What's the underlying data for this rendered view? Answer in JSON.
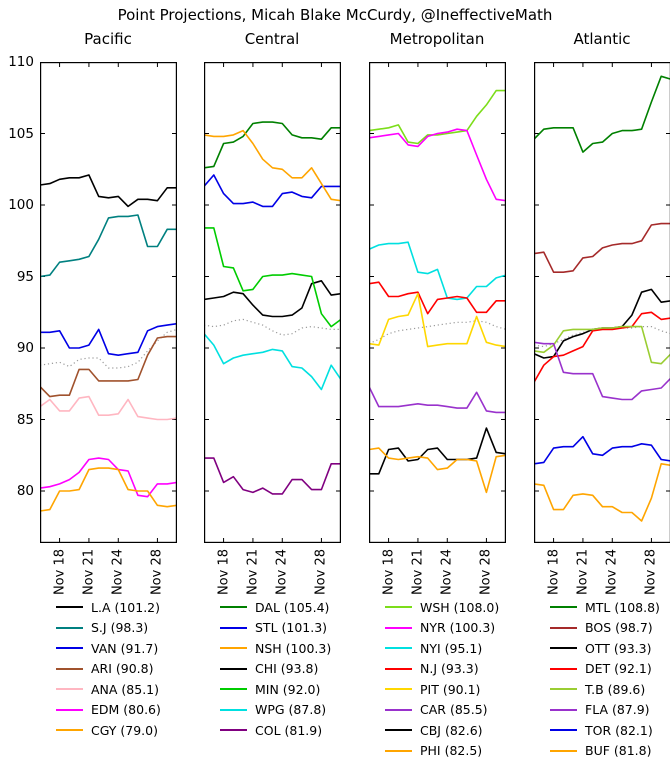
{
  "chart_data": {
    "type": "line",
    "title": "Point Projections, Micah Blake McCurdy, @IneffectiveMath",
    "x_axis": {
      "tick_labels": [
        "Nov 18",
        "Nov 21",
        "Nov 24",
        "Nov 28"
      ],
      "tick_positions_days": [
        2,
        5,
        8,
        12
      ],
      "domain_days": [
        0,
        14
      ]
    },
    "y_axis": {
      "ticks": [
        110,
        105,
        100,
        95,
        90,
        85,
        80
      ],
      "min": 76.4,
      "max": 110
    },
    "average_line_color": "#999999",
    "panels": [
      {
        "title": "Pacific",
        "average_points": [
          88.8,
          88.9,
          89.0,
          88.7,
          89.2,
          89.3,
          89.3,
          88.6,
          88.6,
          88.7,
          89.0,
          89.8,
          90.5,
          91.1,
          91.3
        ],
        "series": [
          {
            "team": "L.A",
            "final": 101.2,
            "label": "L.A (101.2)",
            "color": "#000000",
            "points": [
              101.4,
              101.5,
              101.8,
              101.9,
              101.9,
              102.1,
              100.6,
              100.5,
              100.6,
              99.9,
              100.4,
              100.4,
              100.3,
              101.2,
              101.2
            ]
          },
          {
            "team": "S.J",
            "final": 98.3,
            "label": "S.J (98.3)",
            "color": "#008080",
            "points": [
              95.0,
              95.1,
              96.0,
              96.1,
              96.2,
              96.4,
              97.6,
              99.1,
              99.2,
              99.2,
              99.3,
              97.1,
              97.1,
              98.3,
              98.3
            ]
          },
          {
            "team": "VAN",
            "final": 91.7,
            "label": "VAN (91.7)",
            "color": "#0000e6",
            "points": [
              91.1,
              91.1,
              91.2,
              90.0,
              90.0,
              90.2,
              91.3,
              89.6,
              89.5,
              89.6,
              89.7,
              91.2,
              91.5,
              91.6,
              91.7
            ]
          },
          {
            "team": "ARI",
            "final": 90.8,
            "label": "ARI (90.8)",
            "color": "#a0522d",
            "points": [
              87.3,
              86.6,
              86.7,
              86.7,
              88.5,
              88.5,
              87.7,
              87.7,
              87.7,
              87.7,
              87.8,
              89.5,
              90.7,
              90.8,
              90.8
            ]
          },
          {
            "team": "ANA",
            "final": 85.1,
            "label": "ANA (85.1)",
            "color": "#ffb6c1",
            "points": [
              85.9,
              86.4,
              85.6,
              85.6,
              86.5,
              86.6,
              85.3,
              85.3,
              85.4,
              86.4,
              85.2,
              85.1,
              85.0,
              85.0,
              85.1
            ]
          },
          {
            "team": "EDM",
            "final": 80.6,
            "label": "EDM (80.6)",
            "color": "#ff00ff",
            "points": [
              80.2,
              80.3,
              80.5,
              80.8,
              81.3,
              82.2,
              82.3,
              82.2,
              81.5,
              81.4,
              79.7,
              79.6,
              80.5,
              80.5,
              80.6
            ]
          },
          {
            "team": "CGY",
            "final": 79.0,
            "label": "CGY (79.0)",
            "color": "#ffa500",
            "points": [
              78.6,
              78.7,
              80.0,
              80.0,
              80.1,
              81.5,
              81.6,
              81.6,
              81.5,
              80.1,
              80.0,
              80.0,
              79.0,
              78.9,
              79.0
            ]
          }
        ]
      },
      {
        "title": "Central",
        "average_points": [
          91.6,
          91.5,
          91.6,
          91.9,
          92.0,
          91.8,
          91.6,
          91.2,
          90.9,
          91.0,
          91.4,
          91.5,
          91.4,
          91.3,
          91.3
        ],
        "series": [
          {
            "team": "DAL",
            "final": 105.4,
            "label": "DAL (105.4)",
            "color": "#008000",
            "points": [
              102.6,
              102.7,
              104.3,
              104.4,
              104.8,
              105.7,
              105.8,
              105.8,
              105.7,
              104.9,
              104.7,
              104.7,
              104.6,
              105.4,
              105.4
            ]
          },
          {
            "team": "STL",
            "final": 101.3,
            "label": "STL (101.3)",
            "color": "#0000e6",
            "points": [
              101.3,
              102.1,
              100.8,
              100.1,
              100.1,
              100.2,
              99.9,
              99.9,
              100.8,
              100.9,
              100.6,
              100.5,
              101.3,
              101.3,
              101.3
            ]
          },
          {
            "team": "NSH",
            "final": 100.3,
            "label": "NSH (100.3)",
            "color": "#ffa500",
            "points": [
              104.9,
              104.8,
              104.8,
              104.9,
              105.2,
              104.3,
              103.2,
              102.6,
              102.5,
              101.9,
              101.9,
              102.6,
              101.5,
              100.4,
              100.3
            ]
          },
          {
            "team": "CHI",
            "final": 93.8,
            "label": "CHI (93.8)",
            "color": "#000000",
            "points": [
              93.4,
              93.5,
              93.6,
              93.9,
              93.8,
              93.0,
              92.3,
              92.2,
              92.2,
              92.3,
              92.8,
              94.5,
              94.7,
              93.7,
              93.8
            ]
          },
          {
            "team": "MIN",
            "final": 92.0,
            "label": "MIN (92.0)",
            "color": "#00cc00",
            "points": [
              98.4,
              98.4,
              95.7,
              95.6,
              94.0,
              94.1,
              95.0,
              95.1,
              95.1,
              95.2,
              95.1,
              95.0,
              92.4,
              91.5,
              92.0
            ]
          },
          {
            "team": "WPG",
            "final": 87.8,
            "label": "WPG (87.8)",
            "color": "#00e0e0",
            "points": [
              91.0,
              90.2,
              88.9,
              89.3,
              89.5,
              89.6,
              89.7,
              89.9,
              89.8,
              88.7,
              88.6,
              88.0,
              87.1,
              88.8,
              87.8
            ]
          },
          {
            "team": "COL",
            "final": 81.9,
            "label": "COL (81.9)",
            "color": "#800080",
            "points": [
              82.3,
              82.3,
              80.6,
              81.0,
              80.1,
              79.9,
              80.2,
              79.8,
              79.8,
              80.8,
              80.8,
              80.1,
              80.1,
              81.9,
              81.9
            ]
          }
        ]
      },
      {
        "title": "Metropolitan",
        "average_points": [
          90.3,
          90.6,
          91.0,
          91.2,
          91.3,
          91.4,
          91.5,
          91.6,
          91.7,
          91.8,
          91.8,
          91.9,
          91.8,
          91.5,
          91.3
        ],
        "series": [
          {
            "team": "WSH",
            "final": 108.0,
            "label": "WSH (108.0)",
            "color": "#7cdd1a",
            "points": [
              105.2,
              105.3,
              105.4,
              105.6,
              104.4,
              104.3,
              104.9,
              104.9,
              105.0,
              105.1,
              105.2,
              106.2,
              107.0,
              108.0,
              108.0
            ]
          },
          {
            "team": "NYR",
            "final": 100.3,
            "label": "NYR (100.3)",
            "color": "#ff00ff",
            "points": [
              104.7,
              104.8,
              104.9,
              105.0,
              104.2,
              104.1,
              104.8,
              105.0,
              105.1,
              105.3,
              105.2,
              103.5,
              101.8,
              100.4,
              100.3
            ]
          },
          {
            "team": "NYI",
            "final": 95.1,
            "label": "NYI (95.1)",
            "color": "#00e0e0",
            "points": [
              96.9,
              97.2,
              97.3,
              97.3,
              97.4,
              95.3,
              95.2,
              95.5,
              93.5,
              93.4,
              93.5,
              94.3,
              94.3,
              94.9,
              95.1
            ]
          },
          {
            "team": "N.J",
            "final": 93.3,
            "label": "N.J (93.3)",
            "color": "#ff0000",
            "points": [
              94.5,
              94.6,
              93.6,
              93.6,
              93.8,
              93.9,
              92.4,
              93.4,
              93.5,
              93.6,
              93.5,
              92.5,
              92.5,
              93.3,
              93.3
            ]
          },
          {
            "team": "PIT",
            "final": 90.1,
            "label": "PIT (90.1)",
            "color": "#ffd700",
            "points": [
              90.3,
              90.2,
              92.0,
              92.2,
              92.3,
              93.8,
              90.1,
              90.2,
              90.3,
              90.3,
              90.3,
              92.2,
              90.4,
              90.2,
              90.1
            ]
          },
          {
            "team": "CAR",
            "final": 85.5,
            "label": "CAR (85.5)",
            "color": "#9932cc",
            "points": [
              87.3,
              85.9,
              85.9,
              85.9,
              86.0,
              86.1,
              86.0,
              86.0,
              85.9,
              85.8,
              85.8,
              86.9,
              85.6,
              85.5,
              85.5
            ]
          },
          {
            "team": "CBJ",
            "final": 82.6,
            "label": "CBJ (82.6)",
            "color": "#000000",
            "points": [
              81.2,
              81.2,
              82.9,
              83.0,
              82.1,
              82.2,
              82.9,
              83.0,
              82.2,
              82.2,
              82.2,
              82.3,
              84.4,
              82.7,
              82.6
            ]
          },
          {
            "team": "PHI",
            "final": 82.5,
            "label": "PHI (82.5)",
            "color": "#ffa500",
            "points": [
              82.9,
              83.0,
              82.3,
              82.2,
              82.3,
              82.4,
              82.3,
              81.5,
              81.6,
              82.2,
              82.2,
              82.1,
              79.9,
              82.4,
              82.5
            ]
          }
        ]
      },
      {
        "title": "Atlantic",
        "average_points": [
          90.2,
          90.1,
          90.3,
          90.6,
          90.9,
          91.1,
          91.2,
          91.3,
          91.3,
          91.4,
          91.4,
          91.5,
          91.5,
          91.2,
          91.0
        ],
        "series": [
          {
            "team": "MTL",
            "final": 108.8,
            "label": "MTL (108.8)",
            "color": "#008000",
            "points": [
              104.6,
              105.3,
              105.4,
              105.4,
              105.4,
              103.7,
              104.3,
              104.4,
              105.0,
              105.2,
              105.2,
              105.3,
              107.2,
              109.0,
              108.8
            ]
          },
          {
            "team": "BOS",
            "final": 98.7,
            "label": "BOS (98.7)",
            "color": "#a52a2a",
            "points": [
              96.6,
              96.7,
              95.3,
              95.3,
              95.4,
              96.3,
              96.4,
              97.0,
              97.2,
              97.3,
              97.3,
              97.5,
              98.6,
              98.7,
              98.7
            ]
          },
          {
            "team": "OTT",
            "final": 93.3,
            "label": "OTT (93.3)",
            "color": "#000000",
            "points": [
              89.6,
              89.3,
              89.4,
              90.5,
              90.8,
              91.0,
              91.3,
              91.4,
              91.4,
              91.5,
              92.3,
              93.9,
              94.1,
              93.2,
              93.3
            ]
          },
          {
            "team": "DET",
            "final": 92.1,
            "label": "DET (92.1)",
            "color": "#ff0000",
            "points": [
              87.6,
              88.8,
              89.4,
              89.5,
              89.8,
              90.1,
              91.2,
              91.3,
              91.3,
              91.4,
              91.5,
              92.4,
              92.5,
              92.0,
              92.1
            ]
          },
          {
            "team": "T.B",
            "final": 89.6,
            "label": "T.B (89.6)",
            "color": "#9acd32",
            "points": [
              89.8,
              89.7,
              90.2,
              91.2,
              91.3,
              91.3,
              91.3,
              91.4,
              91.4,
              91.5,
              91.5,
              91.5,
              89.0,
              88.9,
              89.6
            ]
          },
          {
            "team": "FLA",
            "final": 87.9,
            "label": "FLA (87.9)",
            "color": "#9932cc",
            "points": [
              90.4,
              90.3,
              90.3,
              88.3,
              88.2,
              88.2,
              88.2,
              86.6,
              86.5,
              86.4,
              86.4,
              87.0,
              87.1,
              87.2,
              87.9
            ]
          },
          {
            "team": "TOR",
            "final": 82.1,
            "label": "TOR (82.1)",
            "color": "#0000e6",
            "points": [
              81.9,
              82.0,
              83.0,
              83.1,
              83.1,
              83.8,
              82.6,
              82.5,
              83.0,
              83.1,
              83.1,
              83.3,
              83.2,
              82.2,
              82.1
            ]
          },
          {
            "team": "BUF",
            "final": 81.8,
            "label": "BUF (81.8)",
            "color": "#ffa500",
            "points": [
              80.5,
              80.4,
              78.7,
              78.7,
              79.7,
              79.8,
              79.7,
              78.9,
              78.9,
              78.5,
              78.5,
              77.9,
              79.5,
              81.9,
              81.8
            ]
          }
        ]
      }
    ]
  }
}
